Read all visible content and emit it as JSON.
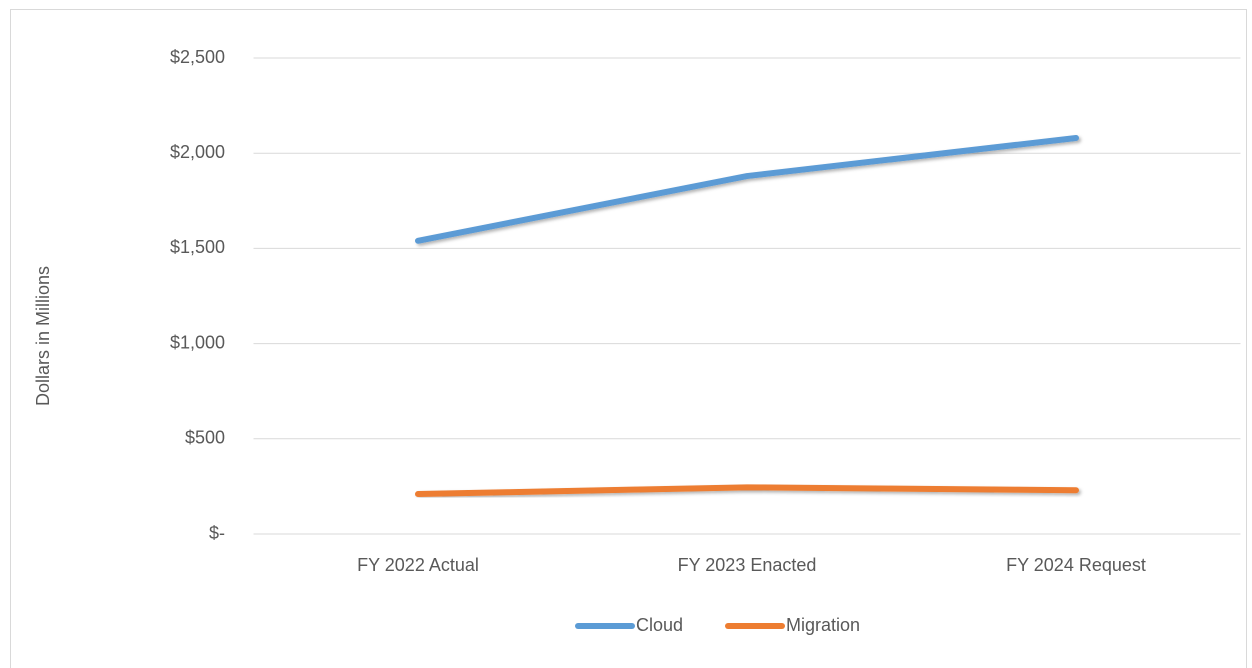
{
  "chart_data": {
    "type": "line",
    "y_axis_label": "Dollars in Millions",
    "categories": [
      "FY 2022 Actual",
      "FY 2023 Enacted",
      "FY 2024 Request"
    ],
    "series": [
      {
        "name": "Cloud",
        "color": "#5b9bd5",
        "values": [
          1540,
          1880,
          2080
        ]
      },
      {
        "name": "Migration",
        "color": "#ed7d31",
        "values": [
          210,
          245,
          230
        ]
      }
    ],
    "ylim": [
      0,
      2500
    ],
    "yticks": [
      {
        "value": 0,
        "label": "$-"
      },
      {
        "value": 500,
        "label": "$500"
      },
      {
        "value": 1000,
        "label": "$1,000"
      },
      {
        "value": 1500,
        "label": "$1,500"
      },
      {
        "value": 2000,
        "label": "$2,000"
      },
      {
        "value": 2500,
        "label": "$2,500"
      }
    ],
    "grid": true,
    "legend": "bottom"
  }
}
